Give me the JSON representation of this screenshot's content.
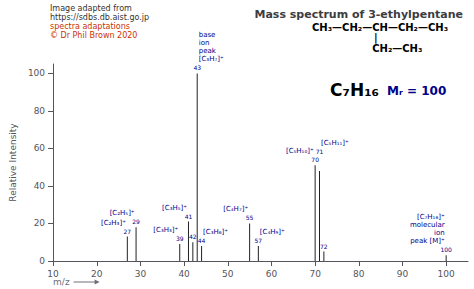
{
  "chart_data": {
    "type": "bar",
    "title": "Mass spectrum of 3-ethylpentane",
    "xlabel": "m/z",
    "ylabel": "Relative Intensity",
    "x": [
      27,
      29,
      39,
      41,
      42,
      43,
      44,
      55,
      57,
      70,
      71,
      72,
      100
    ],
    "values": [
      13,
      18,
      9,
      21,
      10,
      100,
      8,
      20,
      8,
      51,
      48,
      5,
      3
    ],
    "color": "#222222",
    "xlim": [
      10,
      105
    ],
    "xticks": [
      10,
      20,
      30,
      40,
      50,
      60,
      70,
      80,
      90,
      100
    ],
    "ylim": [
      0,
      105
    ],
    "yticks": [
      0,
      20,
      40,
      60,
      80,
      100
    ],
    "grid": false,
    "annotations": [
      {
        "text": "27",
        "x": 27,
        "color": "#00008B"
      },
      {
        "text": "29",
        "x": 29,
        "color": "#00008B"
      },
      {
        "text": "39",
        "x": 39,
        "color": "#00008B"
      },
      {
        "text": "41",
        "x": 41,
        "color": "#00008B"
      },
      {
        "text": "42",
        "x": 42,
        "color": "#00008B"
      },
      {
        "text": "43",
        "x": 43,
        "color": "#00008B"
      },
      {
        "text": "44",
        "x": 44,
        "color": "#00008B"
      },
      {
        "text": "55",
        "x": 55,
        "color": "#00008B"
      },
      {
        "text": "57",
        "x": 57,
        "color": "#00008B"
      },
      {
        "text": "70",
        "x": 70,
        "color": "#00008B"
      },
      {
        "text": "71",
        "x": 71,
        "color": "#00008B"
      },
      {
        "text": "72",
        "x": 72,
        "color": "#00008B"
      },
      {
        "text": "100",
        "x": 100,
        "color": "#00008B"
      },
      {
        "text": "[C₂H₃]⁺",
        "x": 27,
        "color": "#00008B"
      },
      {
        "text": "[C₂H₅]⁺",
        "x": 29,
        "color": "#00008B"
      },
      {
        "text": "[C₃H₃]⁺",
        "x": 39,
        "color": "#00008B"
      },
      {
        "text": "[C₃H₅]⁺",
        "x": 41,
        "color": "#00008B"
      },
      {
        "text": "[C₃H₆]⁺",
        "x": 44,
        "color": "#00008B"
      },
      {
        "text": "[C₄H₇]⁺",
        "x": 55,
        "color": "#00008B"
      },
      {
        "text": "[C₄H₉]⁺",
        "x": 57,
        "color": "#00008B"
      },
      {
        "text": "[C₅H₁₀]⁺",
        "x": 70,
        "color": "#00008B"
      },
      {
        "text": "[C₅H₁₁]⁺",
        "x": 71,
        "color": "#00008B"
      },
      {
        "text": "base\nion\npeak\n[C₃H₇]⁺",
        "x": 43,
        "color": "#00008B"
      },
      {
        "text": "[C₇H₁₆]⁺\nmolecular\nion\npeak [M]⁺",
        "x": 100,
        "color": "#00008B"
      },
      {
        "text": "Image adapted from",
        "color": "#333333"
      },
      {
        "text": "https://sdbs.db.aist.go.jp",
        "color": "#333333"
      },
      {
        "text": "spectra adaptations",
        "color": "#cc3300"
      },
      {
        "text": "© Dr Phil Brown 2020",
        "color": "#cc3300"
      },
      {
        "text": "CH₃—CH₂—CH—CH₂—CH₃",
        "color": "#000000"
      },
      {
        "text": "|",
        "color": "#000000"
      },
      {
        "text": "CH₂—CH₃",
        "color": "#000000"
      },
      {
        "text": "C₇H₁₆",
        "color": "#000000"
      },
      {
        "text": "Mᵣ = 100",
        "color": "#00008B"
      }
    ]
  }
}
